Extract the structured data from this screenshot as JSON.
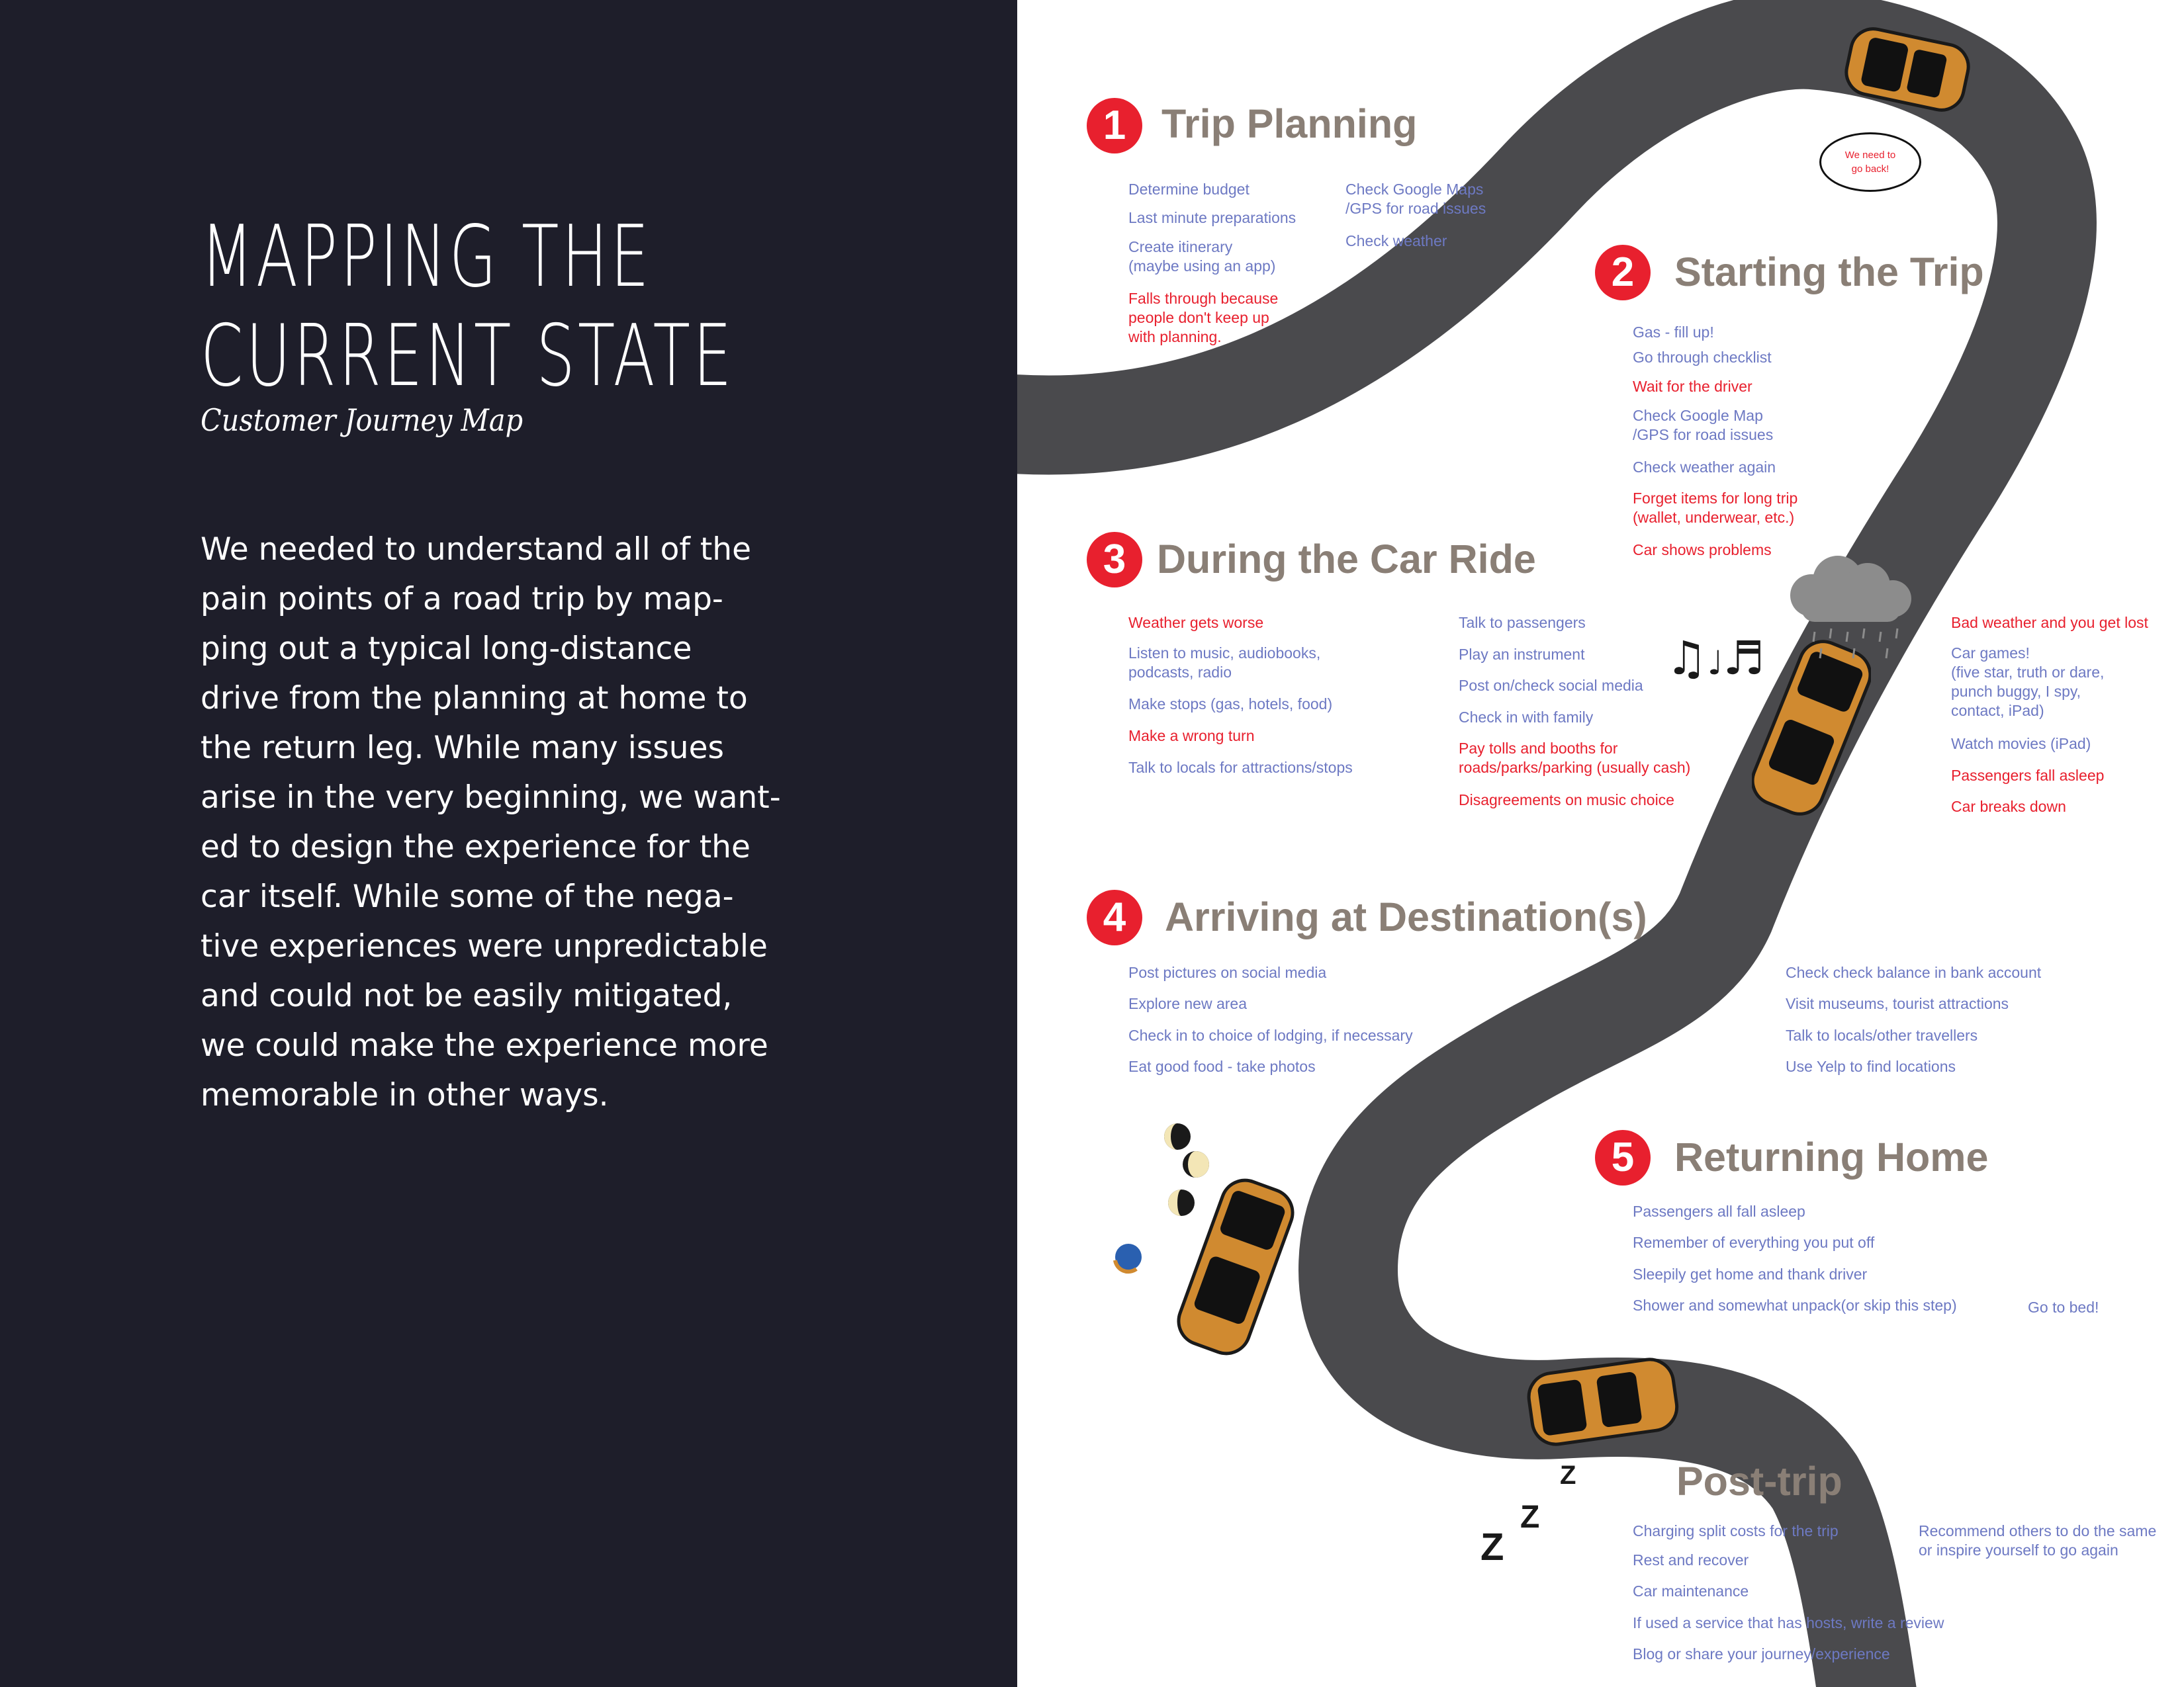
{
  "left_panel": {
    "title_line1": "MAPPING THE",
    "title_line2": "CURRENT STATE",
    "subtitle": "Customer Journey Map",
    "body_lines": [
      "We needed to understand all of the",
      "pain points of a road trip by map-",
      "ping out a typical long-distance",
      "drive from the planning at home to",
      "the return leg. While many issues",
      "arise in the very beginning, we want-",
      "ed to design the experience for the",
      "car itself.  While some of the nega-",
      "tive experiences were unpredictable",
      "and could not be easily mitigated,",
      "we could make the experience more",
      "memorable in other ways."
    ]
  },
  "speech_bubble": "We need to\ngo back!",
  "sections": [
    {
      "number": "1",
      "title": "Trip Planning",
      "items": [
        {
          "text": "Determine budget",
          "tone": "blue"
        },
        {
          "text": "Last minute preparations",
          "tone": "blue"
        },
        {
          "text": "Create itinerary\n(maybe using an app)",
          "tone": "blue"
        },
        {
          "text": "Falls through because\npeople don't keep up\nwith planning.",
          "tone": "red"
        },
        {
          "text": "Check Google Maps\n/GPS for road issues",
          "tone": "blue"
        },
        {
          "text": "Check weather",
          "tone": "blue"
        }
      ]
    },
    {
      "number": "2",
      "title": "Starting the Trip",
      "items": [
        {
          "text": "Gas - fill up!",
          "tone": "blue"
        },
        {
          "text": "Go through checklist",
          "tone": "blue"
        },
        {
          "text": "Wait for the driver",
          "tone": "red"
        },
        {
          "text": "Check Google Map\n/GPS for road issues",
          "tone": "blue"
        },
        {
          "text": "Check weather again",
          "tone": "blue"
        },
        {
          "text": "Forget items for long trip\n(wallet, underwear, etc.)",
          "tone": "red"
        },
        {
          "text": "Car shows problems",
          "tone": "red"
        }
      ]
    },
    {
      "number": "3",
      "title": "During the Car Ride",
      "items": [
        {
          "text": "Weather gets worse",
          "tone": "red"
        },
        {
          "text": "Listen to music, audiobooks,\npodcasts, radio",
          "tone": "blue"
        },
        {
          "text": "Make stops (gas, hotels, food)",
          "tone": "blue"
        },
        {
          "text": "Make a wrong turn",
          "tone": "red"
        },
        {
          "text": "Talk to locals for attractions/stops",
          "tone": "blue"
        },
        {
          "text": "Talk to passengers",
          "tone": "blue"
        },
        {
          "text": "Play an instrument",
          "tone": "blue"
        },
        {
          "text": "Post on/check social media",
          "tone": "blue"
        },
        {
          "text": "Check in with family",
          "tone": "blue"
        },
        {
          "text": "Pay tolls and booths for\nroads/parks/parking (usually cash)",
          "tone": "red"
        },
        {
          "text": "Disagreements on music choice",
          "tone": "red"
        },
        {
          "text": "Bad weather and you get lost",
          "tone": "red"
        },
        {
          "text": "Car games!\n(five star, truth or dare,\npunch buggy, I spy,\ncontact, iPad)",
          "tone": "blue"
        },
        {
          "text": "Watch movies (iPad)",
          "tone": "blue"
        },
        {
          "text": "Passengers fall asleep",
          "tone": "red"
        },
        {
          "text": "Car breaks down",
          "tone": "red"
        }
      ]
    },
    {
      "number": "4",
      "title": "Arriving at Destination(s)",
      "items": [
        {
          "text": "Post pictures on social media",
          "tone": "blue"
        },
        {
          "text": "Explore new area",
          "tone": "blue"
        },
        {
          "text": "Check in to choice of lodging, if necessary",
          "tone": "blue"
        },
        {
          "text": "Eat good food - take photos",
          "tone": "blue"
        },
        {
          "text": "Check check balance in bank account",
          "tone": "blue"
        },
        {
          "text": "Visit museums, tourist attractions",
          "tone": "blue"
        },
        {
          "text": "Talk to locals/other travellers",
          "tone": "blue"
        },
        {
          "text": "Use Yelp to find locations",
          "tone": "blue"
        }
      ]
    },
    {
      "number": "5",
      "title": "Returning Home",
      "items": [
        {
          "text": "Passengers all fall asleep",
          "tone": "blue"
        },
        {
          "text": "Remember of everything you put off",
          "tone": "blue"
        },
        {
          "text": "Sleepily get home and thank driver",
          "tone": "blue"
        },
        {
          "text": "Shower and somewhat unpack(or skip this step)",
          "tone": "blue"
        },
        {
          "text": "Go to bed!",
          "tone": "blue"
        }
      ]
    },
    {
      "number": "",
      "title": "Post-trip",
      "items": [
        {
          "text": "Charging split costs for the trip",
          "tone": "blue"
        },
        {
          "text": "Rest and recover",
          "tone": "blue"
        },
        {
          "text": "Car maintenance",
          "tone": "blue"
        },
        {
          "text": "If used a service that has hosts, write a review",
          "tone": "blue"
        },
        {
          "text": "Blog or share your journey/experience",
          "tone": "blue"
        },
        {
          "text": "Recommend others to do the same\nor inspire yourself to go again",
          "tone": "blue"
        }
      ]
    }
  ],
  "colors": {
    "left_bg": "#1e1e2a",
    "road": "#4a4a4d",
    "car": "#d08a30",
    "accent_red": "#e8202e",
    "item_blue": "#6d79c3",
    "heading_gray": "#8a7f76"
  },
  "icons": [
    "speech-bubble-icon",
    "rain-cloud-icon",
    "music-notes-icon",
    "moon-phases-icon",
    "sleep-z-icon",
    "car-icon"
  ]
}
